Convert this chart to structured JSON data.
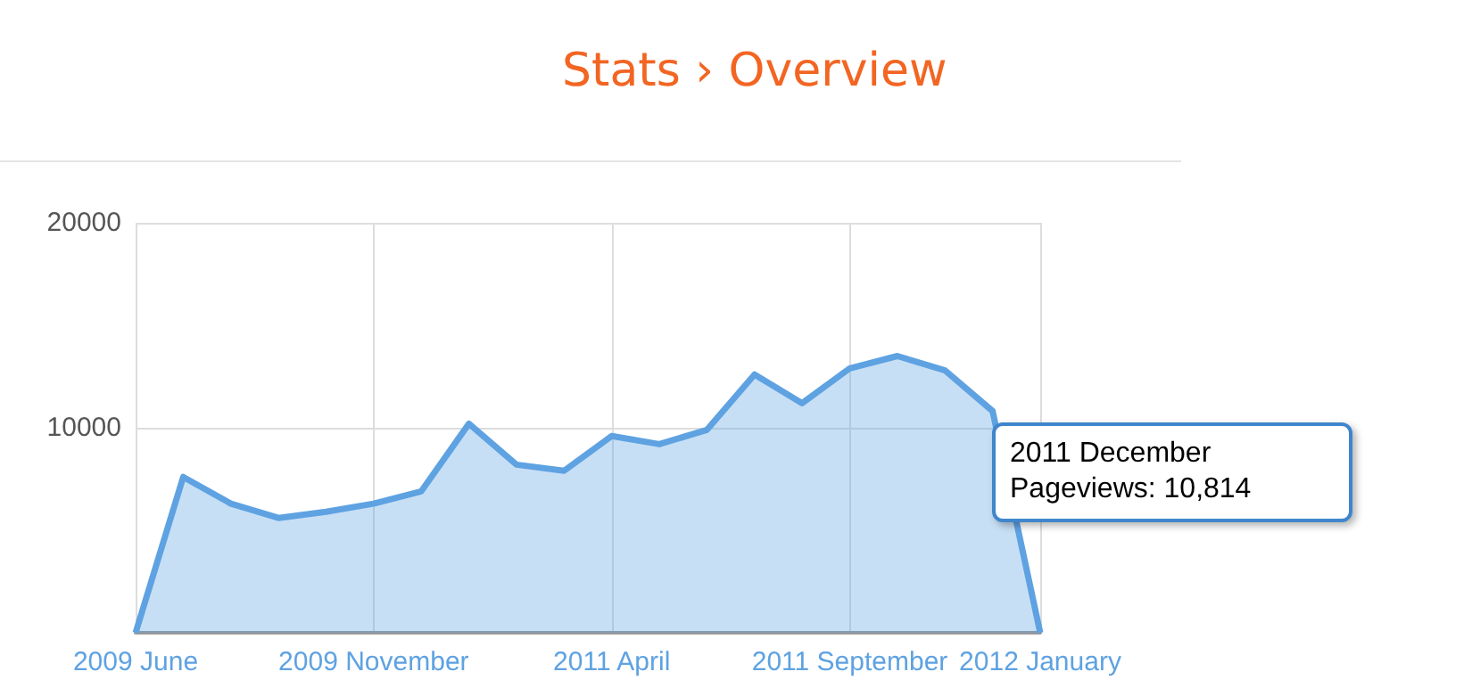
{
  "chart_data": {
    "type": "area",
    "title": "Stats › Overview",
    "categories": [
      "2009 June",
      null,
      null,
      null,
      null,
      "2009 November",
      null,
      null,
      null,
      null,
      "2011 April",
      null,
      null,
      null,
      null,
      "2011 September",
      null,
      null,
      null,
      "2012 January"
    ],
    "values": [
      0,
      7600,
      6300,
      5600,
      5900,
      6300,
      6900,
      10200,
      8200,
      7900,
      9600,
      9200,
      9900,
      12600,
      11200,
      12900,
      13500,
      12800,
      10814,
      0
    ],
    "color": "#5ea2e2",
    "ylim": [
      0,
      20000
    ],
    "yticks": [
      {
        "value": 0,
        "label": null
      },
      10000,
      20000
    ],
    "grid": true,
    "marker": "none",
    "annotations": [
      "2011 December\nPageviews: 10,814"
    ]
  }
}
